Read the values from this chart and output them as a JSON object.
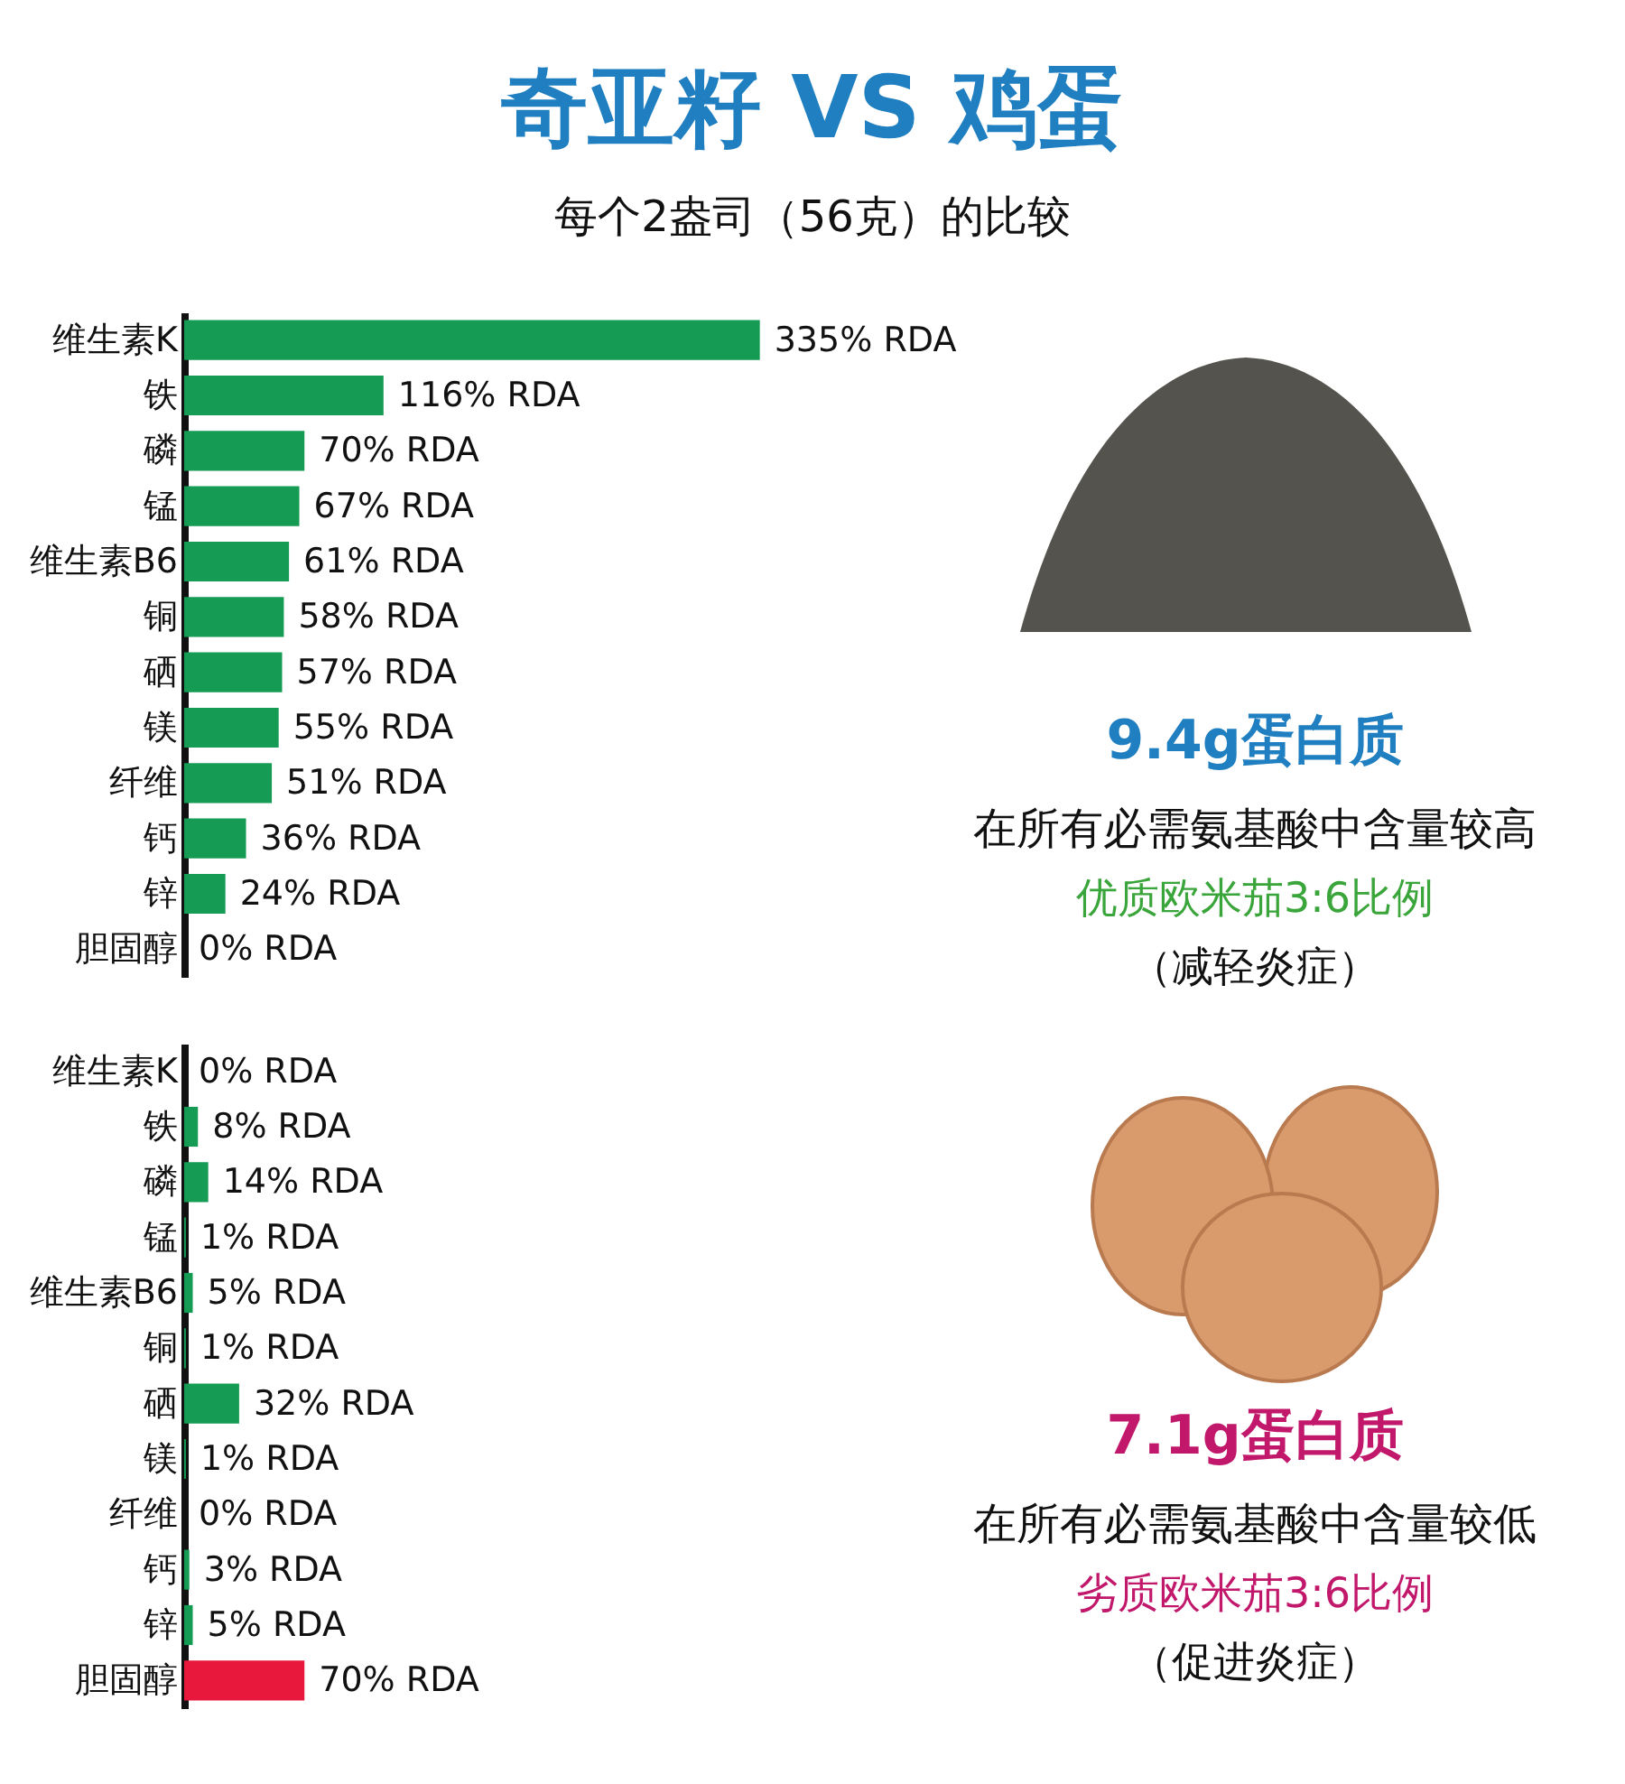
{
  "chart_data": [
    {
      "type": "bar",
      "orientation": "horizontal",
      "title": "奇亚籽 VS 鸡蛋",
      "subtitle": "每个2盎司（56克）的比较",
      "color": "#169b55",
      "categories": [
        "维生素K",
        "铁",
        "磷",
        "锰",
        "维生素B6",
        "铜",
        "硒",
        "镁",
        "纤维",
        "钙",
        "锌",
        "胆固醇"
      ],
      "values": [
        335,
        116,
        70,
        67,
        61,
        58,
        57,
        55,
        51,
        36,
        24,
        0
      ],
      "value_labels": [
        "335% RDA",
        "116% RDA",
        "70% RDA",
        "67% RDA",
        "61% RDA",
        "58% RDA",
        "57% RDA",
        "55% RDA",
        "51% RDA",
        "36% RDA",
        "24% RDA",
        "0% RDA"
      ]
    },
    {
      "type": "bar",
      "orientation": "horizontal",
      "categories": [
        "维生素K",
        "铁",
        "磷",
        "锰",
        "维生素B6",
        "铜",
        "硒",
        "镁",
        "纤维",
        "钙",
        "锌",
        "胆固醇"
      ],
      "values": [
        0,
        8,
        14,
        1,
        5,
        1,
        32,
        1,
        0,
        3,
        5,
        70
      ],
      "colors": [
        "#169b55",
        "#169b55",
        "#169b55",
        "#169b55",
        "#169b55",
        "#169b55",
        "#169b55",
        "#169b55",
        "#169b55",
        "#169b55",
        "#169b55",
        "#e8173c"
      ],
      "value_labels": [
        "0% RDA",
        "8% RDA",
        "14% RDA",
        "1% RDA",
        "5% RDA",
        "1% RDA",
        "32% RDA",
        "1% RDA",
        "0% RDA",
        "3% RDA",
        "5% RDA",
        "70% RDA"
      ]
    },
    {
      "type": "other",
      "title": "9.4g蛋白质",
      "annotations": [
        "在所有必需氨基酸中含量较高",
        "优质欧米茄3:6比例",
        "（减轻炎症）"
      ]
    },
    {
      "type": "other",
      "title": "7.1g蛋白质",
      "annotations": [
        "在所有必需氨基酸中含量较低",
        "劣质欧米茄3:6比例",
        "（促进炎症）"
      ]
    }
  ]
}
